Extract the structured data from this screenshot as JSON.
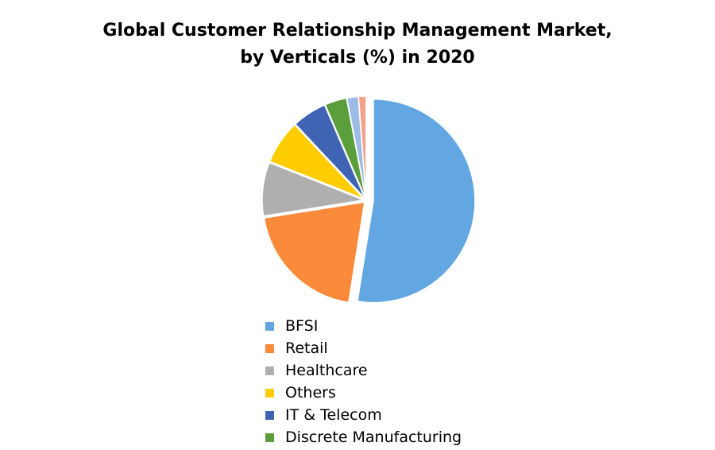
{
  "chart_data": {
    "type": "pie",
    "title": "Global Customer Relationship Management Market,",
    "subtitle": "by Verticals (%) in 2020",
    "slices": [
      {
        "label": "BFSI",
        "value": 52.5,
        "color": "#62A6E2"
      },
      {
        "label": "Retail",
        "value": 20.0,
        "color": "#FB8A3A"
      },
      {
        "label": "Healthcare",
        "value": 8.5,
        "color": "#AFAFAF"
      },
      {
        "label": "Others",
        "value": 7.0,
        "color": "#FFCC00"
      },
      {
        "label": "IT & Telecom",
        "value": 5.5,
        "color": "#3F64B4"
      },
      {
        "label": "Discrete Manufacturing",
        "value": 3.5,
        "color": "#5B9E3C"
      },
      {
        "label": "",
        "value": 1.8,
        "color": "#9CBCE6"
      },
      {
        "label": "",
        "value": 1.2,
        "color": "#F4A38A"
      }
    ],
    "legend_entries": [
      {
        "label": "BFSI",
        "color": "#62A6E2"
      },
      {
        "label": "Retail",
        "color": "#FB8A3A"
      },
      {
        "label": "Healthcare",
        "color": "#AFAFAF"
      },
      {
        "label": "Others",
        "color": "#FFCC00"
      },
      {
        "label": "IT & Telecom",
        "color": "#3F64B4"
      },
      {
        "label": "Discrete Manufacturing",
        "color": "#5B9E3C"
      }
    ],
    "legend_position": "bottom",
    "exploded": true
  }
}
